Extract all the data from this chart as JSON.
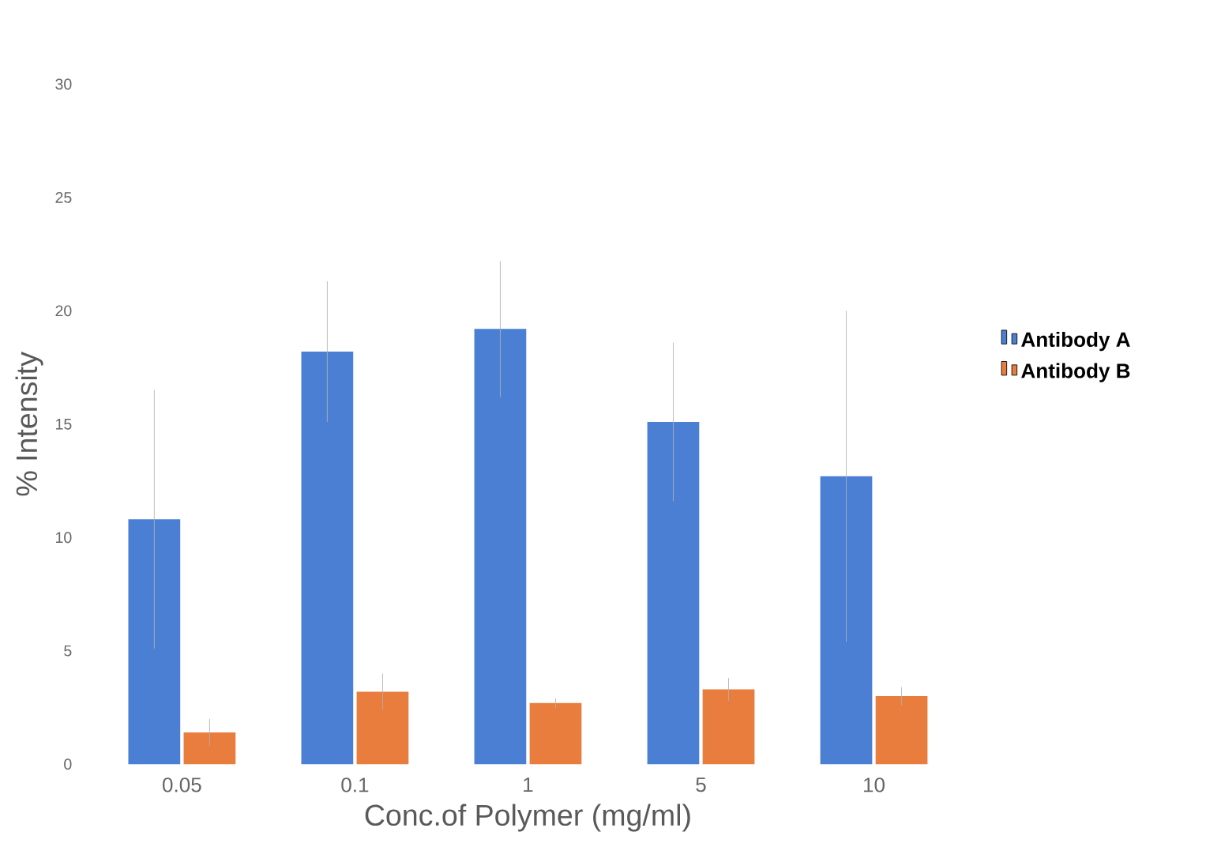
{
  "chart_data": {
    "type": "bar",
    "xlabel": "Conc.of Polymer (mg/ml)",
    "ylabel": "% Intensity",
    "categories": [
      "0.05",
      "0.1",
      "1",
      "5",
      "10"
    ],
    "series": [
      {
        "name": "Antibody A",
        "color": "#4a7fd4",
        "values": [
          10.8,
          18.2,
          19.2,
          15.1,
          12.7
        ],
        "errors": [
          5.7,
          3.1,
          3.0,
          3.5,
          7.3
        ]
      },
      {
        "name": "Antibody B",
        "color": "#e87d3e",
        "values": [
          1.4,
          3.2,
          2.7,
          3.3,
          3.0
        ],
        "errors": [
          0.6,
          0.8,
          0.2,
          0.5,
          0.4
        ]
      }
    ],
    "ylim": [
      0,
      30
    ],
    "yticks": [
      0,
      5,
      10,
      15,
      20,
      25,
      30
    ],
    "legend": "right",
    "grid": false
  }
}
